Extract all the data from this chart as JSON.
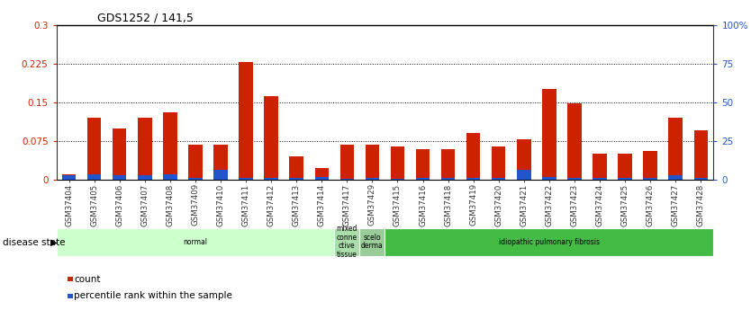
{
  "title": "GDS1252 / 141,5",
  "samples": [
    "GSM37404",
    "GSM37405",
    "GSM37406",
    "GSM37407",
    "GSM37408",
    "GSM37409",
    "GSM37410",
    "GSM37411",
    "GSM37412",
    "GSM37413",
    "GSM37414",
    "GSM37417",
    "GSM37429",
    "GSM37415",
    "GSM37416",
    "GSM37418",
    "GSM37419",
    "GSM37420",
    "GSM37421",
    "GSM37422",
    "GSM37423",
    "GSM37424",
    "GSM37425",
    "GSM37426",
    "GSM37427",
    "GSM37428"
  ],
  "count_values": [
    0.01,
    0.12,
    0.1,
    0.12,
    0.13,
    0.068,
    0.068,
    0.228,
    0.162,
    0.045,
    0.022,
    0.068,
    0.068,
    0.065,
    0.06,
    0.06,
    0.09,
    0.065,
    0.078,
    0.175,
    0.148,
    0.05,
    0.05,
    0.055,
    0.12,
    0.095
  ],
  "percentile_values": [
    0.009,
    0.01,
    0.009,
    0.009,
    0.01,
    0.004,
    0.02,
    0.004,
    0.003,
    0.003,
    0.006,
    0.0015,
    0.003,
    0.0024,
    0.0036,
    0.0036,
    0.003,
    0.0036,
    0.02,
    0.006,
    0.0045,
    0.003,
    0.003,
    0.0036,
    0.009,
    0.0036
  ],
  "ylim_left": [
    0,
    0.3
  ],
  "ylim_right": [
    0,
    100
  ],
  "yticks_left": [
    0,
    0.075,
    0.15,
    0.225,
    0.3
  ],
  "yticks_right": [
    0,
    25,
    50,
    75,
    100
  ],
  "ytick_labels_left": [
    "0",
    "0.075",
    "0.15",
    "0.225",
    "0.3"
  ],
  "ytick_labels_right": [
    "0",
    "25",
    "50",
    "75",
    "100%"
  ],
  "bar_color_red": "#CC2200",
  "bar_color_blue": "#2255CC",
  "disease_groups": [
    {
      "label": "normal",
      "start": 0,
      "end": 11,
      "color": "#ccffcc"
    },
    {
      "label": "mixed\nconne\nctive\ntissue",
      "start": 11,
      "end": 12,
      "color": "#aaddaa"
    },
    {
      "label": "scelo\nderma",
      "start": 12,
      "end": 13,
      "color": "#99cc99"
    },
    {
      "label": "idiopathic pulmonary fibrosis",
      "start": 13,
      "end": 26,
      "color": "#44bb44"
    }
  ],
  "disease_state_label": "disease state",
  "legend_items": [
    {
      "label": "count",
      "color": "#CC2200"
    },
    {
      "label": "percentile rank within the sample",
      "color": "#2255CC"
    }
  ]
}
